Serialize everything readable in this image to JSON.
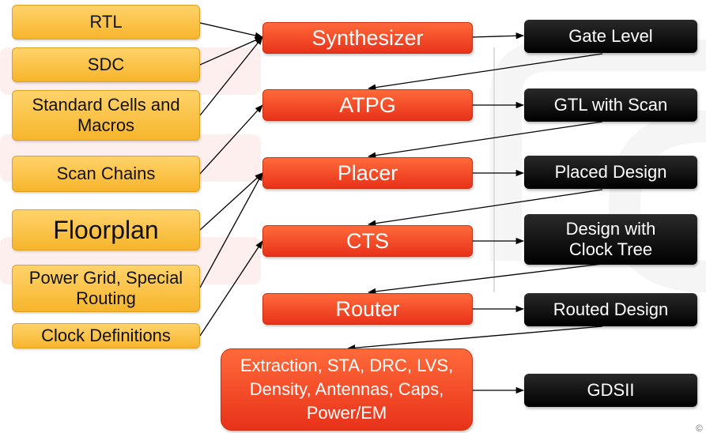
{
  "inputs": {
    "rtl": "RTL",
    "sdc": "SDC",
    "std_cells": "Standard Cells and Macros",
    "scan_chains": "Scan Chains",
    "floorplan": "Floorplan",
    "power_grid": "Power Grid, Special Routing",
    "clock_defs": "Clock Definitions"
  },
  "tools": {
    "synthesizer": "Synthesizer",
    "atpg": "ATPG",
    "placer": "Placer",
    "cts": "CTS",
    "router": "Router",
    "signoff": "Extraction, STA, DRC, LVS, Density, Antennas, Caps, Power/EM"
  },
  "outputs": {
    "gate_level": "Gate Level",
    "gtl_scan": "GTL with Scan",
    "placed": "Placed Design",
    "clock_tree": "Design with Clock Tree",
    "routed": "Routed Design",
    "gdsii": "GDSII"
  },
  "colors": {
    "input_fill": "#f7b52c",
    "tool_fill": "#e8321a",
    "output_fill": "#000000",
    "arrow": "#000000"
  }
}
